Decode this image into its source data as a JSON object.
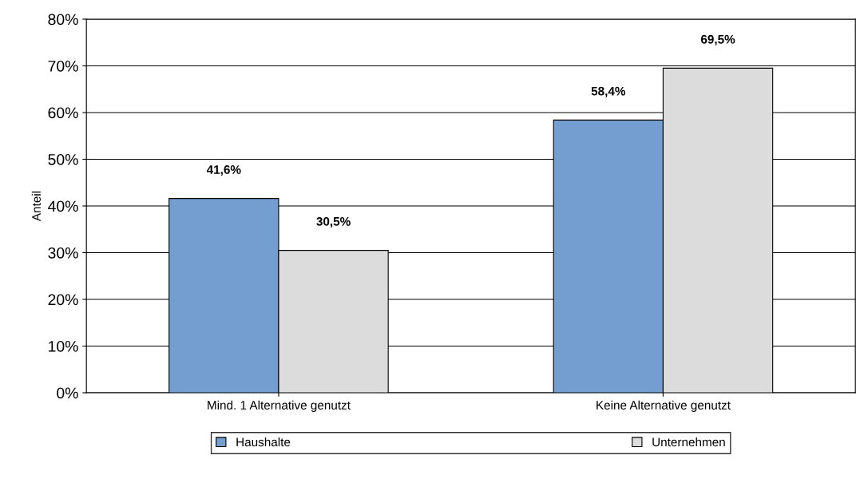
{
  "chart_data": {
    "type": "bar",
    "ylabel": "Anteil",
    "categories": [
      "Mind. 1 Alternative genutzt",
      "Keine Alternative genutzt"
    ],
    "series": [
      {
        "name": "Haushalte",
        "color": "#749ecf",
        "values": [
          41.6,
          58.4
        ],
        "value_labels": [
          "41,6%",
          "58,4%"
        ]
      },
      {
        "name": "Unternehmen",
        "color": "#dcdcdc",
        "values": [
          30.5,
          69.5
        ],
        "value_labels": [
          "30,5%",
          "69,5%"
        ]
      }
    ],
    "ylim": [
      0,
      80
    ],
    "yticks": [
      {
        "value": 0,
        "label": "0%"
      },
      {
        "value": 10,
        "label": "10%"
      },
      {
        "value": 20,
        "label": "20%"
      },
      {
        "value": 30,
        "label": "30%"
      },
      {
        "value": 40,
        "label": "40%"
      },
      {
        "value": 50,
        "label": "50%"
      },
      {
        "value": 60,
        "label": "60%"
      },
      {
        "value": 70,
        "label": "70%"
      },
      {
        "value": 80,
        "label": "80%"
      }
    ],
    "grid": "y",
    "legend": "bottom"
  }
}
